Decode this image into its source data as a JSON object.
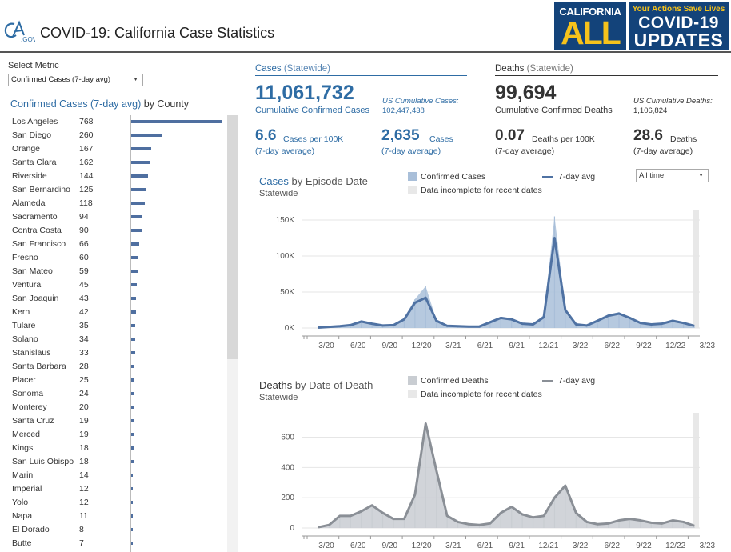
{
  "header": {
    "title": "COVID-19: California Case Statistics",
    "logo_text": "CA.GOV",
    "banner": {
      "california_text": "CALIFORNIA",
      "all_text": "ALL",
      "tagline": "Your Actions Save Lives",
      "covid_text": "COVID-19",
      "updates_text": "UPDATES"
    }
  },
  "metric": {
    "label": "Select Metric",
    "selected": "Confirmed Cases (7-day avg)"
  },
  "county_chart": {
    "title_highlight": "Confirmed Cases (7-day avg)",
    "title_rest": " by County",
    "max_value": 768,
    "counties": [
      {
        "name": "Los Angeles",
        "value": 768
      },
      {
        "name": "San Diego",
        "value": 260
      },
      {
        "name": "Orange",
        "value": 167
      },
      {
        "name": "Santa Clara",
        "value": 162
      },
      {
        "name": "Riverside",
        "value": 144
      },
      {
        "name": "San Bernardino",
        "value": 125
      },
      {
        "name": "Alameda",
        "value": 118
      },
      {
        "name": "Sacramento",
        "value": 94
      },
      {
        "name": "Contra Costa",
        "value": 90
      },
      {
        "name": "San Francisco",
        "value": 66
      },
      {
        "name": "Fresno",
        "value": 60
      },
      {
        "name": "San Mateo",
        "value": 59
      },
      {
        "name": "Ventura",
        "value": 45
      },
      {
        "name": "San Joaquin",
        "value": 43
      },
      {
        "name": "Kern",
        "value": 42
      },
      {
        "name": "Tulare",
        "value": 35
      },
      {
        "name": "Solano",
        "value": 34
      },
      {
        "name": "Stanislaus",
        "value": 33
      },
      {
        "name": "Santa Barbara",
        "value": 28
      },
      {
        "name": "Placer",
        "value": 25
      },
      {
        "name": "Sonoma",
        "value": 24
      },
      {
        "name": "Monterey",
        "value": 20
      },
      {
        "name": "Santa Cruz",
        "value": 19
      },
      {
        "name": "Merced",
        "value": 19
      },
      {
        "name": "Kings",
        "value": 18
      },
      {
        "name": "San Luis Obispo",
        "value": 18
      },
      {
        "name": "Marin",
        "value": 14
      },
      {
        "name": "Imperial",
        "value": 12
      },
      {
        "name": "Yolo",
        "value": 12
      },
      {
        "name": "Napa",
        "value": 11
      },
      {
        "name": "El Dorado",
        "value": 8
      },
      {
        "name": "Butte",
        "value": 7
      }
    ]
  },
  "cases": {
    "heading": "Cases",
    "heading_sub": "(Statewide)",
    "cumulative": "11,061,732",
    "cumulative_label": "Cumulative Confirmed Cases",
    "us_label": "US Cumulative Cases:",
    "us_value": "102,447,438",
    "per100k": "6.6",
    "per100k_unit": "Cases per 100K",
    "per100k_sub": "(7-day average)",
    "daily": "2,635",
    "daily_unit": "Cases",
    "daily_sub": "(7-day average)"
  },
  "deaths": {
    "heading": "Deaths",
    "heading_sub": "(Statewide)",
    "cumulative": "99,694",
    "cumulative_label": "Cumulative Confirmed Deaths",
    "us_label": "US Cumulative Deaths:",
    "us_value": "1,106,824",
    "per100k": "0.07",
    "per100k_unit": "Deaths per 100K",
    "per100k_sub": "(7-day average)",
    "daily": "28.6",
    "daily_unit": "Deaths",
    "daily_sub": "(7-day average)"
  },
  "cases_chart_header": {
    "title_highlight": "Cases",
    "title_rest": " by Episode Date",
    "subtitle": "Statewide",
    "legend_bar": "Confirmed Cases",
    "legend_line": "7-day avg",
    "legend_incomplete": "Data incomplete for recent dates",
    "range_selected": "All time"
  },
  "deaths_chart_header": {
    "title_highlight": "Deaths",
    "title_rest": " by Date of Death",
    "subtitle": "Statewide",
    "legend_bar": "Confirmed Deaths",
    "legend_line": "7-day avg",
    "legend_incomplete": "Data incomplete for recent dates"
  },
  "colors": {
    "accent": "#2e6ca4",
    "county_bar": "#4f6fa0",
    "cases_bar": "#a9bfd9",
    "cases_line": "#4f72a3",
    "deaths_bar": "#c9cdd2",
    "deaths_line": "#8a8f96",
    "incomplete": "#e8e8e8"
  },
  "chart_data": [
    {
      "type": "area",
      "title": "Cases by Episode Date",
      "subtitle": "Statewide",
      "x_ticks": [
        "3/20",
        "6/20",
        "9/20",
        "12/20",
        "3/21",
        "6/21",
        "9/21",
        "12/21",
        "3/22",
        "6/22",
        "9/22",
        "12/22",
        "3/23"
      ],
      "y_ticks": [
        0,
        50000,
        100000,
        150000
      ],
      "y_tick_labels": [
        "0K",
        "50K",
        "100K",
        "150K"
      ],
      "ylim": [
        0,
        160000
      ],
      "series": [
        {
          "name": "7-day avg",
          "x": [
            "3/20",
            "4/20",
            "5/20",
            "6/20",
            "7/20",
            "8/20",
            "9/20",
            "10/20",
            "11/20",
            "12/20",
            "1/21",
            "2/21",
            "3/21",
            "4/21",
            "5/21",
            "6/21",
            "7/21",
            "8/21",
            "9/21",
            "10/21",
            "11/21",
            "12/21",
            "1/22",
            "2/22",
            "3/22",
            "4/22",
            "5/22",
            "6/22",
            "7/22",
            "8/22",
            "9/22",
            "10/22",
            "11/22",
            "12/22",
            "1/23",
            "2/23"
          ],
          "values": [
            500,
            1500,
            2500,
            4000,
            9000,
            6000,
            3500,
            4000,
            12000,
            35000,
            42000,
            10000,
            3000,
            2500,
            2000,
            2000,
            8000,
            14000,
            12000,
            6000,
            5000,
            15000,
            125000,
            25000,
            5000,
            3500,
            10000,
            17000,
            20000,
            14000,
            7000,
            5000,
            6000,
            10000,
            7000,
            3000
          ]
        },
        {
          "name": "Confirmed Cases",
          "x": [
            "3/20",
            "4/20",
            "5/20",
            "6/20",
            "7/20",
            "8/20",
            "9/20",
            "10/20",
            "11/20",
            "12/20",
            "1/21",
            "2/21",
            "3/21",
            "4/21",
            "5/21",
            "6/21",
            "7/21",
            "8/21",
            "9/21",
            "10/21",
            "11/21",
            "12/21",
            "1/22",
            "2/22",
            "3/22",
            "4/22",
            "5/22",
            "6/22",
            "7/22",
            "8/22",
            "9/22",
            "10/22",
            "11/22",
            "12/22",
            "1/23",
            "2/23"
          ],
          "values": [
            700,
            1800,
            3000,
            4500,
            10000,
            6500,
            4000,
            4500,
            14000,
            40000,
            58000,
            11000,
            3500,
            3000,
            2400,
            2400,
            9000,
            15000,
            13000,
            6500,
            5500,
            18000,
            155000,
            28000,
            5500,
            4000,
            11000,
            19000,
            22000,
            15000,
            7500,
            5500,
            6500,
            11000,
            7500,
            3500
          ]
        }
      ]
    },
    {
      "type": "area",
      "title": "Deaths by Date of Death",
      "subtitle": "Statewide",
      "x_ticks": [
        "3/20",
        "6/20",
        "9/20",
        "12/20",
        "3/21",
        "6/21",
        "9/21",
        "12/21",
        "3/22",
        "6/22",
        "9/22",
        "12/22",
        "3/23"
      ],
      "y_ticks": [
        0,
        200,
        400,
        600
      ],
      "ylim": [
        0,
        740
      ],
      "series": [
        {
          "name": "7-day avg",
          "x": [
            "3/20",
            "4/20",
            "5/20",
            "6/20",
            "7/20",
            "8/20",
            "9/20",
            "10/20",
            "11/20",
            "12/20",
            "1/21",
            "2/21",
            "3/21",
            "4/21",
            "5/21",
            "6/21",
            "7/21",
            "8/21",
            "9/21",
            "10/21",
            "11/21",
            "12/21",
            "1/22",
            "2/22",
            "3/22",
            "4/22",
            "5/22",
            "6/22",
            "7/22",
            "8/22",
            "9/22",
            "10/22",
            "11/22",
            "12/22",
            "1/23",
            "2/23"
          ],
          "values": [
            5,
            20,
            80,
            80,
            110,
            150,
            100,
            60,
            60,
            220,
            690,
            380,
            80,
            40,
            25,
            20,
            30,
            100,
            140,
            90,
            70,
            80,
            200,
            280,
            100,
            40,
            25,
            30,
            50,
            60,
            50,
            35,
            30,
            50,
            40,
            15
          ]
        }
      ]
    }
  ]
}
